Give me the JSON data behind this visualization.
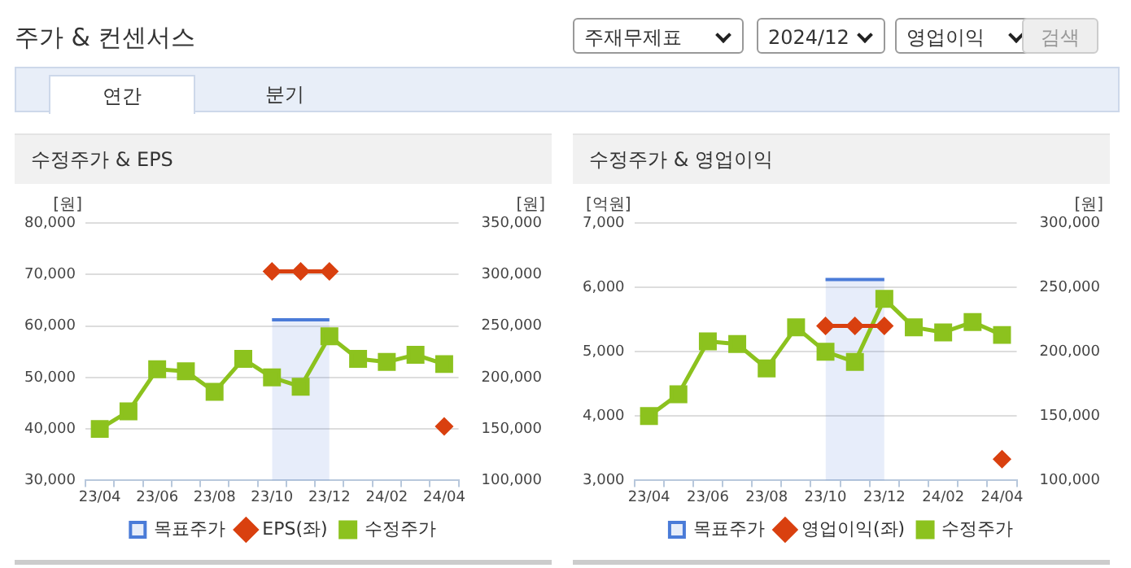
{
  "chart_data": [
    {
      "type": "other",
      "title": "주가 & 컨센서스",
      "annotations": [
        "주재무제표",
        "2024/12",
        "영업이익",
        "검색",
        "연간",
        "분기"
      ]
    },
    {
      "type": "line",
      "title": "수정주가 & EPS",
      "categories": [
        "23/04",
        null,
        "23/06",
        null,
        "23/08",
        null,
        "23/10",
        null,
        "23/12",
        null,
        "24/02",
        null,
        "24/04"
      ],
      "ylabel": "[원]",
      "y2label": "[원]",
      "ylim": [
        30000,
        80000
      ],
      "yticks": [
        {
          "value": 30000,
          "label": "30,000"
        },
        {
          "value": 40000,
          "label": "40,000"
        },
        {
          "value": 50000,
          "label": "50,000"
        },
        {
          "value": 60000,
          "label": "60,000"
        },
        {
          "value": 70000,
          "label": "70,000"
        },
        {
          "value": 80000,
          "label": "80,000"
        }
      ],
      "y2lim": [
        100000,
        350000
      ],
      "y2ticks": [
        {
          "value": 100000,
          "label": "100,000"
        },
        {
          "value": 150000,
          "label": "150,000"
        },
        {
          "value": 200000,
          "label": "200,000"
        },
        {
          "value": 250000,
          "label": "250,000"
        },
        {
          "value": 300000,
          "label": "300,000"
        },
        {
          "value": 350000,
          "label": "350,000"
        }
      ],
      "grid": "y",
      "legend": "bottom",
      "series": [
        {
          "name": "목표주가",
          "type": "area",
          "axis": "y2",
          "color": "#4a7bd8",
          "values": [
            null,
            null,
            null,
            null,
            null,
            null,
            256000,
            256000,
            256000,
            null,
            null,
            null,
            null
          ]
        },
        {
          "name": "EPS(좌)",
          "type": "line",
          "color": "#d9400f",
          "marker": "diamond",
          "values": [
            null,
            null,
            null,
            null,
            null,
            null,
            70600,
            70600,
            70600,
            null,
            null,
            null,
            40500
          ]
        },
        {
          "name": "수정주가",
          "type": "line",
          "axis": "y2",
          "color": "#8cc21e",
          "marker": "square",
          "values": [
            150000,
            167000,
            208000,
            206000,
            186000,
            218000,
            200000,
            191000,
            240000,
            218000,
            215000,
            222000,
            213000
          ]
        }
      ]
    },
    {
      "type": "line",
      "title": "수정주가 & 영업이익",
      "categories": [
        "23/04",
        null,
        "23/06",
        null,
        "23/08",
        null,
        "23/10",
        null,
        "23/12",
        null,
        "24/02",
        null,
        "24/04"
      ],
      "ylabel": "[억원]",
      "y2label": "[원]",
      "ylim": [
        3000,
        7000
      ],
      "yticks": [
        {
          "value": 3000,
          "label": "3,000"
        },
        {
          "value": 4000,
          "label": "4,000"
        },
        {
          "value": 5000,
          "label": "5,000"
        },
        {
          "value": 6000,
          "label": "6,000"
        },
        {
          "value": 7000,
          "label": "7,000"
        }
      ],
      "y2lim": [
        100000,
        300000
      ],
      "y2ticks": [
        {
          "value": 100000,
          "label": "100,000"
        },
        {
          "value": 150000,
          "label": "150,000"
        },
        {
          "value": 200000,
          "label": "200,000"
        },
        {
          "value": 250000,
          "label": "250,000"
        },
        {
          "value": 300000,
          "label": "300,000"
        }
      ],
      "grid": "y",
      "legend": "bottom",
      "series": [
        {
          "name": "목표주가",
          "type": "area",
          "axis": "y2",
          "color": "#4a7bd8",
          "values": [
            null,
            null,
            null,
            null,
            null,
            null,
            256000,
            256000,
            256000,
            null,
            null,
            null,
            null
          ]
        },
        {
          "name": "영업이익(좌)",
          "type": "line",
          "color": "#d9400f",
          "marker": "diamond",
          "values": [
            null,
            null,
            null,
            null,
            null,
            null,
            5400,
            5400,
            5400,
            null,
            null,
            null,
            3330
          ]
        },
        {
          "name": "수정주가",
          "type": "line",
          "axis": "y2",
          "color": "#8cc21e",
          "marker": "square",
          "values": [
            150000,
            167000,
            208000,
            206000,
            187000,
            219000,
            200000,
            192000,
            241000,
            219000,
            215000,
            223000,
            213000
          ]
        }
      ]
    }
  ]
}
